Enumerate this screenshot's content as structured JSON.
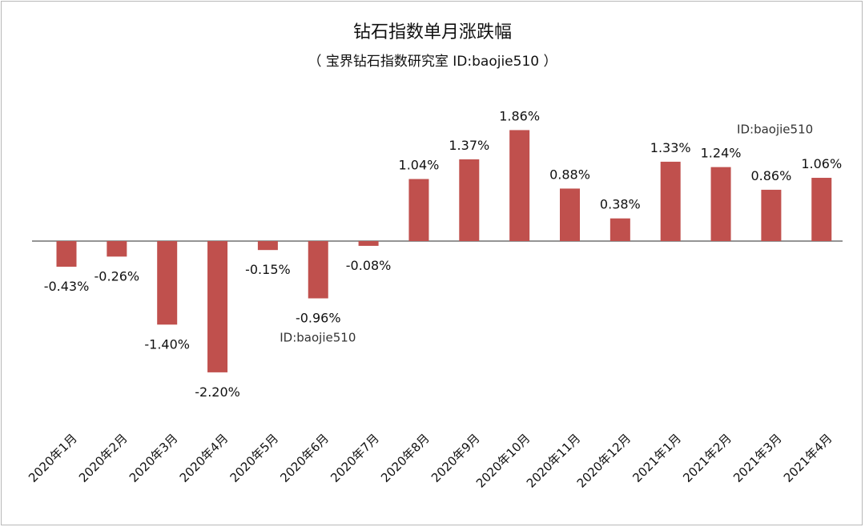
{
  "chart_data": {
    "type": "bar",
    "title": "钻石指数单月涨跌幅",
    "subtitle": "（ 宝界钻石指数研究室  ID:baojie510 ）",
    "categories": [
      "2020年1月",
      "2020年2月",
      "2020年3月",
      "2020年4月",
      "2020年5月",
      "2020年6月",
      "2020年7月",
      "2020年8月",
      "2020年9月",
      "2020年10月",
      "2020年11月",
      "2020年12月",
      "2021年1月",
      "2021年2月",
      "2021年3月",
      "2021年4月"
    ],
    "values": [
      -0.43,
      -0.26,
      -1.4,
      -2.2,
      -0.15,
      -0.96,
      -0.08,
      1.04,
      1.37,
      1.86,
      0.88,
      0.38,
      1.33,
      1.24,
      0.86,
      1.06
    ],
    "labels": [
      "-0.43%",
      "-0.26%",
      "-1.40%",
      "-2.20%",
      "-0.15%",
      "-0.96%",
      "-0.08%",
      "1.04%",
      "1.37%",
      "1.86%",
      "0.88%",
      "0.38%",
      "1.33%",
      "1.24%",
      "0.86%",
      "1.06%"
    ],
    "unit": "%",
    "bar_color": "#c0504d",
    "axis_color": "#555555",
    "annotations": [
      {
        "text": "ID:baojie510",
        "near_category": "2020年6月",
        "position": "below-bar"
      },
      {
        "text": "ID:baojie510",
        "near_category": "2021年2月",
        "position": "above-bar"
      }
    ],
    "grid": false,
    "legend": "none"
  }
}
